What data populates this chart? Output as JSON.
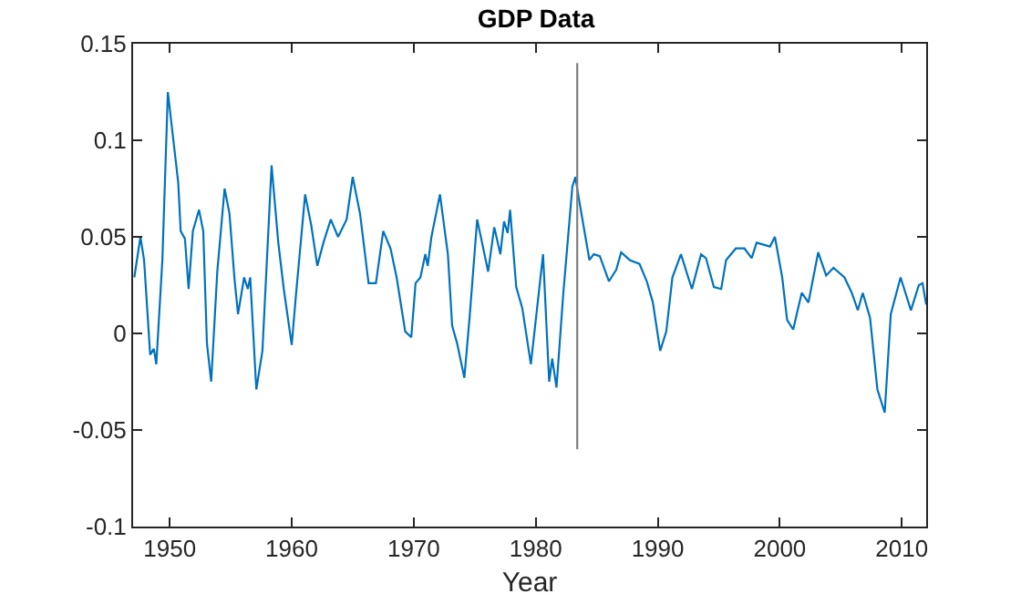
{
  "chart_data": {
    "type": "line",
    "title": "GDP Data",
    "xlabel": "Year",
    "xlim": [
      1947,
      2012
    ],
    "xticks": [
      1950,
      1960,
      1970,
      1980,
      1990,
      2000,
      2010
    ],
    "ylim": [
      -0.1,
      0.15
    ],
    "yticks": [
      -0.1,
      -0.05,
      0,
      0.05,
      0.1,
      0.15
    ],
    "marker": "none",
    "line_style": "solid",
    "series": [
      {
        "color": "#0072bd",
        "x": [
          1947.1,
          1947.6,
          1947.9,
          1948.4,
          1948.7,
          1948.9,
          1949.4,
          1949.85,
          1950.7,
          1950.9,
          1951.25,
          1951.55,
          1951.9,
          1952.4,
          1952.75,
          1953.05,
          1953.4,
          1953.9,
          1954.5,
          1954.9,
          1955.3,
          1955.6,
          1956.1,
          1956.4,
          1956.6,
          1957.1,
          1957.6,
          1958.35,
          1958.9,
          1959.35,
          1960,
          1960.35,
          1961.1,
          1961.6,
          1962.1,
          1962.6,
          1963.2,
          1963.8,
          1964.5,
          1965,
          1965.6,
          1966.3,
          1966.9,
          1967.5,
          1968.1,
          1968.6,
          1969.3,
          1969.8,
          1970.15,
          1970.55,
          1970.95,
          1971.15,
          1971.45,
          1972.15,
          1972.8,
          1973.15,
          1973.55,
          1974.15,
          1974.6,
          1975.2,
          1976.1,
          1976.6,
          1977.1,
          1977.4,
          1977.7,
          1977.9,
          1978.4,
          1978.9,
          1979.6,
          1980.6,
          1981.1,
          1981.35,
          1981.7,
          1982.25,
          1983.0,
          1983.25,
          1983.5,
          1984.4,
          1984.75,
          1985.25,
          1986.0,
          1986.6,
          1987.0,
          1987.7,
          1988.5,
          1989.1,
          1989.6,
          1990.2,
          1990.7,
          1991.2,
          1991.9,
          1992.8,
          1993.55,
          1993.95,
          1994.6,
          1995.2,
          1995.6,
          1996.4,
          1997.1,
          1997.7,
          1998.1,
          1999.2,
          1999.6,
          2000.2,
          2000.6,
          2001.1,
          2001.5,
          2001.8,
          2002.35,
          2003.15,
          2003.8,
          2004.4,
          2005.3,
          2005.9,
          2006.4,
          2006.8,
          2007.4,
          2008.0,
          2008.6,
          2009.1,
          2009.9,
          2010.75,
          2011.4,
          2011.7,
          2012.0
        ],
        "values": [
          0.029,
          0.05,
          0.038,
          -0.011,
          -0.008,
          -0.016,
          0.038,
          0.125,
          0.078,
          0.053,
          0.049,
          0.023,
          0.053,
          0.064,
          0.053,
          -0.005,
          -0.025,
          0.032,
          0.075,
          0.062,
          0.029,
          0.01,
          0.029,
          0.023,
          0.029,
          -0.029,
          -0.009,
          0.087,
          0.047,
          0.023,
          -0.006,
          0.02,
          0.072,
          0.056,
          0.035,
          0.047,
          0.059,
          0.05,
          0.059,
          0.081,
          0.062,
          0.026,
          0.026,
          0.053,
          0.044,
          0.029,
          0.001,
          -0.002,
          0.026,
          0.029,
          0.041,
          0.035,
          0.05,
          0.072,
          0.041,
          0.004,
          -0.005,
          -0.023,
          0.01,
          0.059,
          0.032,
          0.055,
          0.041,
          0.058,
          0.052,
          0.064,
          0.024,
          0.013,
          -0.016,
          0.041,
          -0.025,
          -0.013,
          -0.028,
          0.02,
          0.076,
          0.081,
          0.071,
          0.038,
          0.041,
          0.04,
          0.027,
          0.033,
          0.042,
          0.038,
          0.036,
          0.027,
          0.016,
          -0.009,
          0.001,
          0.029,
          0.041,
          0.023,
          0.041,
          0.039,
          0.024,
          0.023,
          0.038,
          0.044,
          0.044,
          0.039,
          0.047,
          0.045,
          0.05,
          0.029,
          0.007,
          0.002,
          0.013,
          0.021,
          0.016,
          0.042,
          0.03,
          0.034,
          0.029,
          0.021,
          0.012,
          0.021,
          0.008,
          -0.029,
          -0.041,
          0.01,
          0.029,
          0.012,
          0.025,
          0.026,
          0.015
        ]
      },
      {
        "color": "#7f7f7f",
        "x": [
          1983.4,
          1983.4
        ],
        "values": [
          -0.06,
          0.14
        ]
      }
    ]
  }
}
